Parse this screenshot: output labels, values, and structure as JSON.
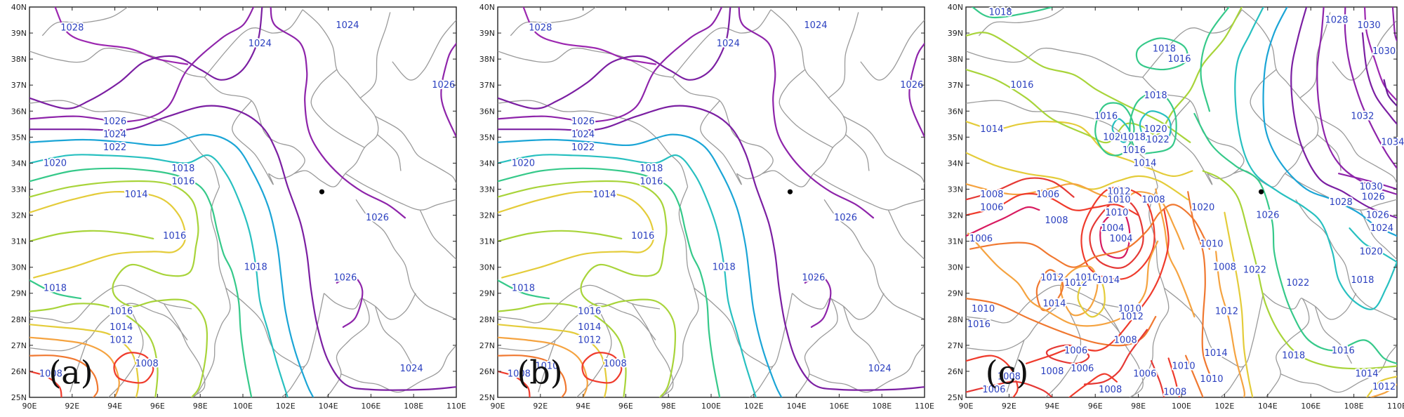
{
  "axes": {
    "x_ticks": [
      "90E",
      "92E",
      "94E",
      "96E",
      "98E",
      "100E",
      "102E",
      "104E",
      "106E",
      "108E",
      "110E"
    ],
    "y_ticks": [
      "25N",
      "26N",
      "27N",
      "28N",
      "29N",
      "30N",
      "31N",
      "32N",
      "33N",
      "34N",
      "35N",
      "36N",
      "37N",
      "38N",
      "39N",
      "40N"
    ],
    "lon_range": [
      90,
      110
    ],
    "lat_range": [
      25,
      40
    ],
    "tick_interval_deg": 2,
    "tick_interval_lat": 1
  },
  "colors": {
    "c1004": "#d81b60",
    "c1006": "#e53935",
    "c1008": "#ef3b2c",
    "c1010": "#f07830",
    "c1012": "#f5a340",
    "c1014": "#e4cc3a",
    "c1016": "#a8d43a",
    "c1018": "#36c98a",
    "c1020": "#28c0c0",
    "c1022": "#1ba5d6",
    "c1024": "#7b1fa2",
    "c1026": "#8e24aa",
    "c1028": "#9c27b0",
    "c1030": "#8e24aa",
    "c1032": "#7b1fa2",
    "c1034": "#6a1b9a",
    "boundary": "#9a9a9a",
    "label": "#2a3fbf"
  },
  "panels": [
    {
      "id": "a",
      "label": "(a)",
      "marker": {
        "lon": 103.7,
        "lat": 32.9
      },
      "contour_labels": [
        "1028",
        "1024",
        "1024",
        "1026",
        "1024",
        "1022",
        "1020",
        "1018",
        "1016",
        "1014",
        "1016",
        "1018",
        "1018",
        "1016",
        "1014",
        "1012",
        "1008",
        "1008",
        "1026",
        "1026",
        "1026",
        "1024"
      ]
    },
    {
      "id": "b",
      "label": "(b)",
      "marker": {
        "lon": 103.7,
        "lat": 32.9
      },
      "contour_labels": [
        "1028",
        "1024",
        "1024",
        "1026",
        "1024",
        "1022",
        "1020",
        "1018",
        "1016",
        "1014",
        "1016",
        "1018",
        "1018",
        "1016",
        "1014",
        "1012",
        "1008",
        "1010",
        "1008",
        "1026",
        "1026",
        "1026",
        "1024"
      ]
    },
    {
      "id": "c",
      "label": "(c)",
      "marker": {
        "lon": 103.7,
        "lat": 32.9
      },
      "contour_labels": [
        "1018",
        "1018",
        "1016",
        "1016",
        "1018",
        "1014",
        "1016",
        "1020",
        "1020",
        "1018",
        "1022",
        "1016",
        "1014",
        "1008",
        "1006",
        "1012",
        "1006",
        "1010",
        "1010",
        "1008",
        "1008",
        "1004",
        "1006",
        "1004",
        "1020",
        "1010",
        "1008",
        "1012",
        "1014",
        "1012",
        "1010",
        "1014",
        "1010",
        "1012",
        "1008",
        "1022",
        "1012",
        "1010",
        "1014",
        "1016",
        "1006",
        "1008",
        "1008",
        "1006",
        "1006",
        "1010",
        "1008",
        "1006",
        "1008",
        "1010",
        "1018",
        "1016",
        "1014",
        "1012",
        "1020",
        "1018",
        "1022",
        "1024",
        "1026",
        "1028",
        "1030",
        "1026",
        "1030",
        "1030",
        "1028",
        "1032",
        "1034",
        "1026"
      ]
    }
  ]
}
